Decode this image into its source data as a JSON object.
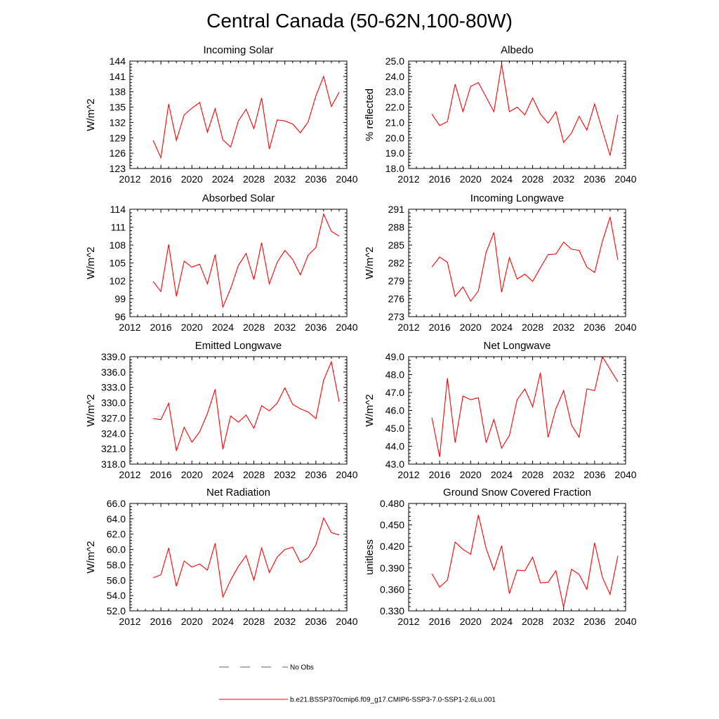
{
  "title": "Central Canada (50-62N,100-80W)",
  "legend": {
    "obs_label": "No Obs",
    "obs_color": "#5a5aa8",
    "model_label": "b.e21.BSSP370cmip6.f09_g17.CMIP6-SSP3-7.0-SSP1-2.6Lu.001",
    "model_color": "#ff0000"
  },
  "chart_data": [
    {
      "type": "line",
      "title": "Incoming Solar",
      "ylabel": "W/m^2",
      "xlim": [
        2012,
        2040
      ],
      "xticks": [
        2012,
        2016,
        2020,
        2024,
        2028,
        2032,
        2036,
        2040
      ],
      "ylim": [
        123,
        144
      ],
      "yticks": [
        123,
        126,
        129,
        132,
        135,
        138,
        141,
        144
      ],
      "ytick_labels": [
        "123",
        "126",
        "129",
        "132",
        "135",
        "138",
        "141",
        "144"
      ],
      "series": [
        {
          "x": [
            2015,
            2016,
            2017,
            2018,
            2019,
            2020,
            2021,
            2022,
            2023,
            2024,
            2025,
            2026,
            2027,
            2028,
            2029,
            2030,
            2031,
            2032,
            2033,
            2034,
            2035,
            2036,
            2037,
            2038,
            2039
          ],
          "values": [
            128.5,
            125.1,
            135.6,
            128.5,
            133.5,
            134.8,
            135.9,
            130.1,
            134.7,
            128.6,
            127.2,
            132.3,
            134.6,
            130.8,
            136.8,
            126.8,
            132.5,
            132.3,
            131.7,
            130.0,
            132.1,
            137.2,
            141.0,
            135.1,
            137.9
          ]
        }
      ]
    },
    {
      "type": "line",
      "title": "Albedo",
      "ylabel": "% reflected",
      "xlim": [
        2012,
        2040
      ],
      "xticks": [
        2012,
        2016,
        2020,
        2024,
        2028,
        2032,
        2036,
        2040
      ],
      "ylim": [
        18,
        25
      ],
      "yticks": [
        18,
        19,
        20,
        21,
        22,
        23,
        24,
        25
      ],
      "ytick_labels": [
        "18.0",
        "19.0",
        "20.0",
        "21.0",
        "22.0",
        "23.0",
        "24.0",
        "25.0"
      ],
      "series": [
        {
          "x": [
            2015,
            2016,
            2017,
            2018,
            2019,
            2020,
            2021,
            2022,
            2023,
            2024,
            2025,
            2026,
            2027,
            2028,
            2029,
            2030,
            2031,
            2032,
            2033,
            2034,
            2035,
            2036,
            2037,
            2038,
            2039
          ],
          "values": [
            21.55,
            20.8,
            21.05,
            23.5,
            21.7,
            23.35,
            23.6,
            22.65,
            21.7,
            24.8,
            21.7,
            22.0,
            21.5,
            22.6,
            21.55,
            20.95,
            21.7,
            19.7,
            20.3,
            21.4,
            20.5,
            22.2,
            20.5,
            18.85,
            21.5
          ]
        }
      ]
    },
    {
      "type": "line",
      "title": "Absorbed Solar",
      "ylabel": "W/m^2",
      "xlim": [
        2012,
        2040
      ],
      "xticks": [
        2012,
        2016,
        2020,
        2024,
        2028,
        2032,
        2036,
        2040
      ],
      "ylim": [
        96,
        114
      ],
      "yticks": [
        96,
        99,
        102,
        105,
        108,
        111,
        114
      ],
      "ytick_labels": [
        "96",
        "99",
        "102",
        "105",
        "108",
        "111",
        "114"
      ],
      "series": [
        {
          "x": [
            2015,
            2016,
            2017,
            2018,
            2019,
            2020,
            2021,
            2022,
            2023,
            2024,
            2025,
            2026,
            2027,
            2028,
            2029,
            2030,
            2031,
            2032,
            2033,
            2034,
            2035,
            2036,
            2037,
            2038,
            2039
          ],
          "values": [
            101.9,
            100.2,
            108.1,
            99.4,
            105.3,
            104.3,
            104.8,
            101.5,
            106.4,
            97.6,
            100.7,
            104.6,
            106.6,
            102.2,
            108.4,
            101.5,
            105.1,
            107.1,
            105.6,
            103.0,
            106.3,
            107.6,
            113.2,
            110.3,
            109.5
          ]
        }
      ]
    },
    {
      "type": "line",
      "title": "Incoming Longwave",
      "ylabel": "W/m^2",
      "xlim": [
        2012,
        2040
      ],
      "xticks": [
        2012,
        2016,
        2020,
        2024,
        2028,
        2032,
        2036,
        2040
      ],
      "ylim": [
        273,
        291
      ],
      "yticks": [
        273,
        276,
        279,
        282,
        285,
        288,
        291
      ],
      "ytick_labels": [
        "273",
        "276",
        "279",
        "282",
        "285",
        "288",
        "291"
      ],
      "series": [
        {
          "x": [
            2015,
            2016,
            2017,
            2018,
            2019,
            2020,
            2021,
            2022,
            2023,
            2024,
            2025,
            2026,
            2027,
            2028,
            2029,
            2030,
            2031,
            2032,
            2033,
            2034,
            2035,
            2036,
            2037,
            2038,
            2039
          ],
          "values": [
            281.3,
            283.0,
            282.1,
            276.4,
            278.0,
            275.6,
            277.3,
            283.8,
            287.1,
            277.1,
            282.9,
            279.3,
            280.1,
            278.9,
            281.2,
            283.4,
            283.5,
            285.5,
            284.3,
            284.1,
            281.3,
            280.4,
            285.6,
            289.7,
            282.5
          ]
        }
      ]
    },
    {
      "type": "line",
      "title": "Emitted Longwave",
      "ylabel": "W/m^2",
      "xlim": [
        2012,
        2040
      ],
      "xticks": [
        2012,
        2016,
        2020,
        2024,
        2028,
        2032,
        2036,
        2040
      ],
      "ylim": [
        318,
        339
      ],
      "yticks": [
        318,
        321,
        324,
        327,
        330,
        333,
        336,
        339
      ],
      "ytick_labels": [
        "318.0",
        "321.0",
        "324.0",
        "327.0",
        "330.0",
        "333.0",
        "336.0",
        "339.0"
      ],
      "series": [
        {
          "x": [
            2015,
            2016,
            2017,
            2018,
            2019,
            2020,
            2021,
            2022,
            2023,
            2024,
            2025,
            2026,
            2027,
            2028,
            2029,
            2030,
            2031,
            2032,
            2033,
            2034,
            2035,
            2036,
            2037,
            2038,
            2039
          ],
          "values": [
            326.9,
            326.7,
            329.9,
            320.6,
            325.2,
            322.3,
            324.3,
            327.9,
            332.6,
            320.9,
            327.4,
            326.2,
            327.6,
            325.0,
            329.4,
            328.4,
            329.9,
            332.9,
            329.7,
            328.8,
            328.2,
            326.9,
            334.4,
            338.0,
            330.2
          ]
        }
      ]
    },
    {
      "type": "line",
      "title": "Net Longwave",
      "ylabel": "W/m^2",
      "xlim": [
        2012,
        2040
      ],
      "xticks": [
        2012,
        2016,
        2020,
        2024,
        2028,
        2032,
        2036,
        2040
      ],
      "ylim": [
        43,
        49
      ],
      "yticks": [
        43,
        44,
        45,
        46,
        47,
        48,
        49
      ],
      "ytick_labels": [
        "43.0",
        "44.0",
        "45.0",
        "46.0",
        "47.0",
        "48.0",
        "49.0"
      ],
      "series": [
        {
          "x": [
            2015,
            2016,
            2017,
            2018,
            2019,
            2020,
            2021,
            2022,
            2023,
            2024,
            2025,
            2026,
            2027,
            2028,
            2029,
            2030,
            2031,
            2032,
            2033,
            2034,
            2035,
            2036,
            2037,
            2038,
            2039
          ],
          "values": [
            45.6,
            43.4,
            47.8,
            44.2,
            46.8,
            46.6,
            46.7,
            44.2,
            45.5,
            43.9,
            44.6,
            46.6,
            47.2,
            46.2,
            48.1,
            44.5,
            46.1,
            47.1,
            45.2,
            44.5,
            47.2,
            47.1,
            49.0,
            48.3,
            47.6
          ]
        }
      ]
    },
    {
      "type": "line",
      "title": "Net Radiation",
      "ylabel": "W/m^2",
      "xlim": [
        2012,
        2040
      ],
      "xticks": [
        2012,
        2016,
        2020,
        2024,
        2028,
        2032,
        2036,
        2040
      ],
      "ylim": [
        52,
        66
      ],
      "yticks": [
        52,
        54,
        56,
        58,
        60,
        62,
        64,
        66
      ],
      "ytick_labels": [
        "52.0",
        "54.0",
        "56.0",
        "58.0",
        "60.0",
        "62.0",
        "64.0",
        "66.0"
      ],
      "series": [
        {
          "x": [
            2015,
            2016,
            2017,
            2018,
            2019,
            2020,
            2021,
            2022,
            2023,
            2024,
            2025,
            2026,
            2027,
            2028,
            2029,
            2030,
            2031,
            2032,
            2033,
            2034,
            2035,
            2036,
            2037,
            2038,
            2039
          ],
          "values": [
            56.3,
            56.7,
            60.2,
            55.2,
            58.5,
            57.7,
            58.1,
            57.3,
            60.8,
            53.8,
            56.0,
            57.8,
            59.2,
            56.0,
            60.2,
            57.0,
            59.0,
            60.0,
            60.3,
            58.3,
            58.9,
            60.6,
            64.1,
            62.2,
            61.9
          ]
        }
      ]
    },
    {
      "type": "line",
      "title": "Ground Snow Covered Fraction",
      "ylabel": "unitless",
      "xlim": [
        2012,
        2040
      ],
      "xticks": [
        2012,
        2016,
        2020,
        2024,
        2028,
        2032,
        2036,
        2040
      ],
      "ylim": [
        0.33,
        0.48
      ],
      "yticks": [
        0.33,
        0.36,
        0.39,
        0.42,
        0.45,
        0.48
      ],
      "ytick_labels": [
        "0.330",
        "0.360",
        "0.390",
        "0.420",
        "0.450",
        "0.480"
      ],
      "series": [
        {
          "x": [
            2015,
            2016,
            2017,
            2018,
            2019,
            2020,
            2021,
            2022,
            2023,
            2024,
            2025,
            2026,
            2027,
            2028,
            2029,
            2030,
            2031,
            2032,
            2033,
            2034,
            2035,
            2036,
            2037,
            2038,
            2039
          ],
          "values": [
            0.382,
            0.363,
            0.373,
            0.426,
            0.416,
            0.409,
            0.464,
            0.417,
            0.387,
            0.421,
            0.354,
            0.387,
            0.386,
            0.405,
            0.369,
            0.37,
            0.386,
            0.335,
            0.388,
            0.381,
            0.36,
            0.425,
            0.377,
            0.353,
            0.407
          ]
        }
      ]
    }
  ]
}
